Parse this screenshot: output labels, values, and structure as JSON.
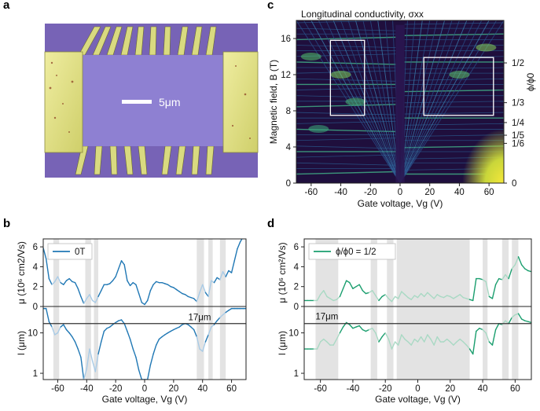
{
  "panels": {
    "a": {
      "letter": "a",
      "scale_bar_label": "5μm"
    },
    "b": {
      "letter": "b"
    },
    "c": {
      "letter": "c"
    },
    "d": {
      "letter": "d"
    }
  },
  "colors": {
    "blue": "#1f77b4",
    "green": "#1a9e6e",
    "green_light": "#a9d9c4",
    "blue_light": "#a9cbe6",
    "grey_band": "#e3e3e3",
    "substrate": "#8068b8",
    "device": "#8d7fd0",
    "gold": "#dfe08a",
    "map_dark": "#1f0f3d",
    "map_yellow": "#f3e43a"
  },
  "chart_data": [
    {
      "id": "c",
      "type": "heatmap",
      "title": "Longitudinal conductivity, σxx",
      "xlabel": "Gate voltage, Vg (V)",
      "ylabel": "Magnetic field, B (T)",
      "right_axis_label": "ϕ/ϕ0",
      "xlim": [
        -70,
        70
      ],
      "ylim": [
        0,
        18
      ],
      "xticks": [
        -60,
        -40,
        -20,
        0,
        20,
        40,
        60
      ],
      "yticks": [
        0,
        4,
        8,
        12,
        16
      ],
      "right_ticks": [
        {
          "label": "1/2",
          "b": 13.3
        },
        {
          "label": "1/3",
          "b": 8.9
        },
        {
          "label": "1/4",
          "b": 6.7
        },
        {
          "label": "1/5",
          "b": 5.3
        },
        {
          "label": "1/6",
          "b": 4.4
        },
        {
          "label": "0",
          "b": 0
        }
      ],
      "boxes": [
        {
          "vg": [
            -47,
            -24
          ],
          "b": [
            7.5,
            15.8
          ]
        },
        {
          "vg": [
            16,
            63
          ],
          "b": [
            7.5,
            13.9
          ]
        }
      ]
    },
    {
      "id": "b",
      "type": "line",
      "xlabel": "Gate voltage, Vg (V)",
      "xlim": [
        -70,
        70
      ],
      "xticks": [
        -60,
        -40,
        -20,
        0,
        20,
        40,
        60
      ],
      "bands": [
        [
          -63,
          -59
        ],
        [
          -41,
          -37
        ],
        [
          -35,
          -32
        ],
        [
          36,
          41
        ],
        [
          44,
          47
        ],
        [
          52,
          56
        ]
      ],
      "top": {
        "ylabel": "μ (10⁶ cm2/Vs)",
        "ylim": [
          0,
          6.8
        ],
        "yticks": [
          0,
          2,
          4,
          6
        ],
        "legend": "0T",
        "x": [
          -70,
          -68,
          -66,
          -64,
          -62,
          -60,
          -58,
          -56,
          -54,
          -52,
          -50,
          -48,
          -46,
          -44,
          -42,
          -40,
          -38,
          -36,
          -34,
          -32,
          -30,
          -28,
          -26,
          -24,
          -22,
          -20,
          -18,
          -16,
          -14,
          -12,
          -10,
          -8,
          -6,
          -4,
          -2,
          0,
          2,
          4,
          6,
          8,
          10,
          12,
          14,
          16,
          18,
          20,
          22,
          24,
          26,
          28,
          30,
          32,
          34,
          36,
          38,
          40,
          42,
          44,
          46,
          48,
          50,
          52,
          54,
          56,
          58,
          60,
          62,
          64,
          66,
          68,
          70
        ],
        "y": [
          5.9,
          4.8,
          2.8,
          2.2,
          2.5,
          3.0,
          2.4,
          2.2,
          2.6,
          2.8,
          2.5,
          2.4,
          1.8,
          1.0,
          0.3,
          0.8,
          1.2,
          0.6,
          0.4,
          1.0,
          1.6,
          2.2,
          2.2,
          2.3,
          2.6,
          3.0,
          3.8,
          4.6,
          4.2,
          2.6,
          2.1,
          2.4,
          2.2,
          1.3,
          0.4,
          0.2,
          0.6,
          1.6,
          2.2,
          2.5,
          2.4,
          2.4,
          2.3,
          2.2,
          2.0,
          1.9,
          1.7,
          1.5,
          1.3,
          1.2,
          1.0,
          0.9,
          0.8,
          0.5,
          1.4,
          2.2,
          1.4,
          1.0,
          2.6,
          2.4,
          2.9,
          2.7,
          3.5,
          3.0,
          3.6,
          3.4,
          4.6,
          5.8,
          6.5,
          7.0,
          7.0
        ]
      },
      "bottom": {
        "ylabel": "l (μm)",
        "yscale": "log",
        "ylim": [
          0.7,
          45
        ],
        "yticks": [
          1,
          10
        ],
        "hline": 17,
        "hline_label": "17μm",
        "x": [
          -70,
          -68,
          -66,
          -64,
          -62,
          -60,
          -58,
          -56,
          -54,
          -52,
          -50,
          -48,
          -46,
          -44,
          -42,
          -40,
          -38,
          -36,
          -34,
          -32,
          -30,
          -28,
          -26,
          -24,
          -22,
          -20,
          -18,
          -16,
          -14,
          -12,
          -10,
          -8,
          -6,
          -4,
          -2,
          0,
          2,
          4,
          6,
          8,
          10,
          12,
          14,
          16,
          18,
          20,
          22,
          24,
          26,
          28,
          30,
          32,
          34,
          36,
          38,
          40,
          42,
          44,
          46,
          48,
          50,
          52,
          54,
          56,
          58,
          60,
          62,
          64,
          66,
          68,
          70
        ],
        "y": [
          40,
          40,
          19,
          14,
          9,
          10,
          14,
          16,
          12,
          10,
          8,
          6,
          4,
          2.5,
          0.6,
          1.3,
          4,
          2,
          1.1,
          3,
          6,
          11,
          13,
          14,
          16,
          18,
          20,
          21,
          17,
          11,
          7,
          4,
          2.5,
          1.2,
          0.6,
          0.4,
          0.7,
          1.6,
          3,
          5,
          7,
          8,
          9,
          10,
          11,
          12,
          13,
          14,
          16,
          17,
          16,
          14,
          12,
          8,
          4,
          3.5,
          6,
          9,
          14,
          16,
          20,
          24,
          28,
          32,
          36,
          40,
          40,
          40,
          40,
          40,
          40
        ]
      }
    },
    {
      "id": "d",
      "type": "line",
      "xlabel": "Gate voltage, Vg (V)",
      "xlim": [
        -70,
        70
      ],
      "xticks": [
        -60,
        -40,
        -20,
        0,
        20,
        40,
        60
      ],
      "bands": [
        [
          -63,
          -49
        ],
        [
          -29,
          -25
        ],
        [
          -19,
          -15
        ],
        [
          -13,
          32
        ],
        [
          40,
          43
        ],
        [
          52,
          56
        ],
        [
          58,
          62
        ]
      ],
      "top": {
        "ylabel": "μ (10⁶ cm²/Vs)",
        "ylim": [
          0,
          6.8
        ],
        "yticks": [
          0,
          2,
          4,
          6
        ],
        "legend": "ϕ/ϕ0 = 1/2",
        "x": [
          -70,
          -68,
          -66,
          -64,
          -62,
          -60,
          -58,
          -56,
          -54,
          -52,
          -50,
          -48,
          -46,
          -44,
          -42,
          -40,
          -38,
          -36,
          -34,
          -32,
          -30,
          -28,
          -26,
          -24,
          -22,
          -20,
          -18,
          -16,
          -14,
          -12,
          -10,
          -8,
          -6,
          -4,
          -2,
          0,
          2,
          4,
          6,
          8,
          10,
          12,
          14,
          16,
          18,
          20,
          22,
          24,
          26,
          28,
          30,
          32,
          34,
          36,
          38,
          40,
          42,
          44,
          46,
          48,
          50,
          52,
          54,
          56,
          58,
          60,
          62,
          64,
          66,
          68,
          70
        ],
        "y": [
          0.6,
          0.6,
          0.6,
          0.6,
          0.6,
          1.2,
          1.6,
          1.0,
          0.8,
          0.6,
          0.7,
          1.0,
          1.8,
          2.6,
          2.4,
          1.8,
          2.0,
          2.2,
          1.6,
          1.3,
          1.4,
          1.6,
          1.1,
          0.6,
          1.0,
          1.2,
          0.8,
          0.5,
          1.0,
          0.8,
          1.5,
          1.2,
          0.9,
          0.7,
          1.1,
          0.9,
          1.3,
          1.0,
          1.4,
          1.1,
          0.8,
          1.2,
          1.0,
          0.9,
          1.1,
          1.0,
          0.8,
          1.0,
          1.2,
          0.9,
          0.8,
          0.7,
          0.6,
          2.8,
          2.8,
          2.7,
          2.5,
          1.0,
          0.8,
          2.2,
          2.8,
          2.7,
          3.2,
          2.8,
          3.8,
          4.2,
          5.0,
          4.2,
          3.8,
          3.6,
          3.5
        ]
      },
      "bottom": {
        "ylabel": "l (μm)",
        "yscale": "log",
        "ylim": [
          0.7,
          45
        ],
        "yticks": [
          1,
          10
        ],
        "hline": 17,
        "hline_label": "17μm",
        "x": [
          -70,
          -68,
          -66,
          -64,
          -62,
          -60,
          -58,
          -56,
          -54,
          -52,
          -50,
          -48,
          -46,
          -44,
          -42,
          -40,
          -38,
          -36,
          -34,
          -32,
          -30,
          -28,
          -26,
          -24,
          -22,
          -20,
          -18,
          -16,
          -14,
          -12,
          -10,
          -8,
          -6,
          -4,
          -2,
          0,
          2,
          4,
          6,
          8,
          10,
          12,
          14,
          16,
          18,
          20,
          22,
          24,
          26,
          28,
          30,
          32,
          34,
          36,
          38,
          40,
          42,
          44,
          46,
          48,
          50,
          52,
          54,
          56,
          58,
          60,
          62,
          64,
          66,
          68,
          70
        ],
        "y": [
          4,
          4,
          4,
          4,
          4,
          6,
          7,
          6,
          5,
          5,
          7,
          10,
          14,
          18,
          16,
          13,
          14,
          15,
          12,
          11,
          12,
          13,
          10,
          6,
          8,
          10,
          7,
          4,
          6,
          5,
          9,
          7,
          6,
          5,
          7,
          6,
          8,
          6,
          9,
          7,
          5,
          8,
          6,
          6,
          7,
          6,
          5,
          6,
          7,
          6,
          5,
          4,
          3,
          11,
          13,
          12,
          10,
          6,
          5,
          12,
          17,
          16,
          20,
          17,
          24,
          28,
          30,
          22,
          20,
          19,
          18
        ]
      }
    }
  ]
}
